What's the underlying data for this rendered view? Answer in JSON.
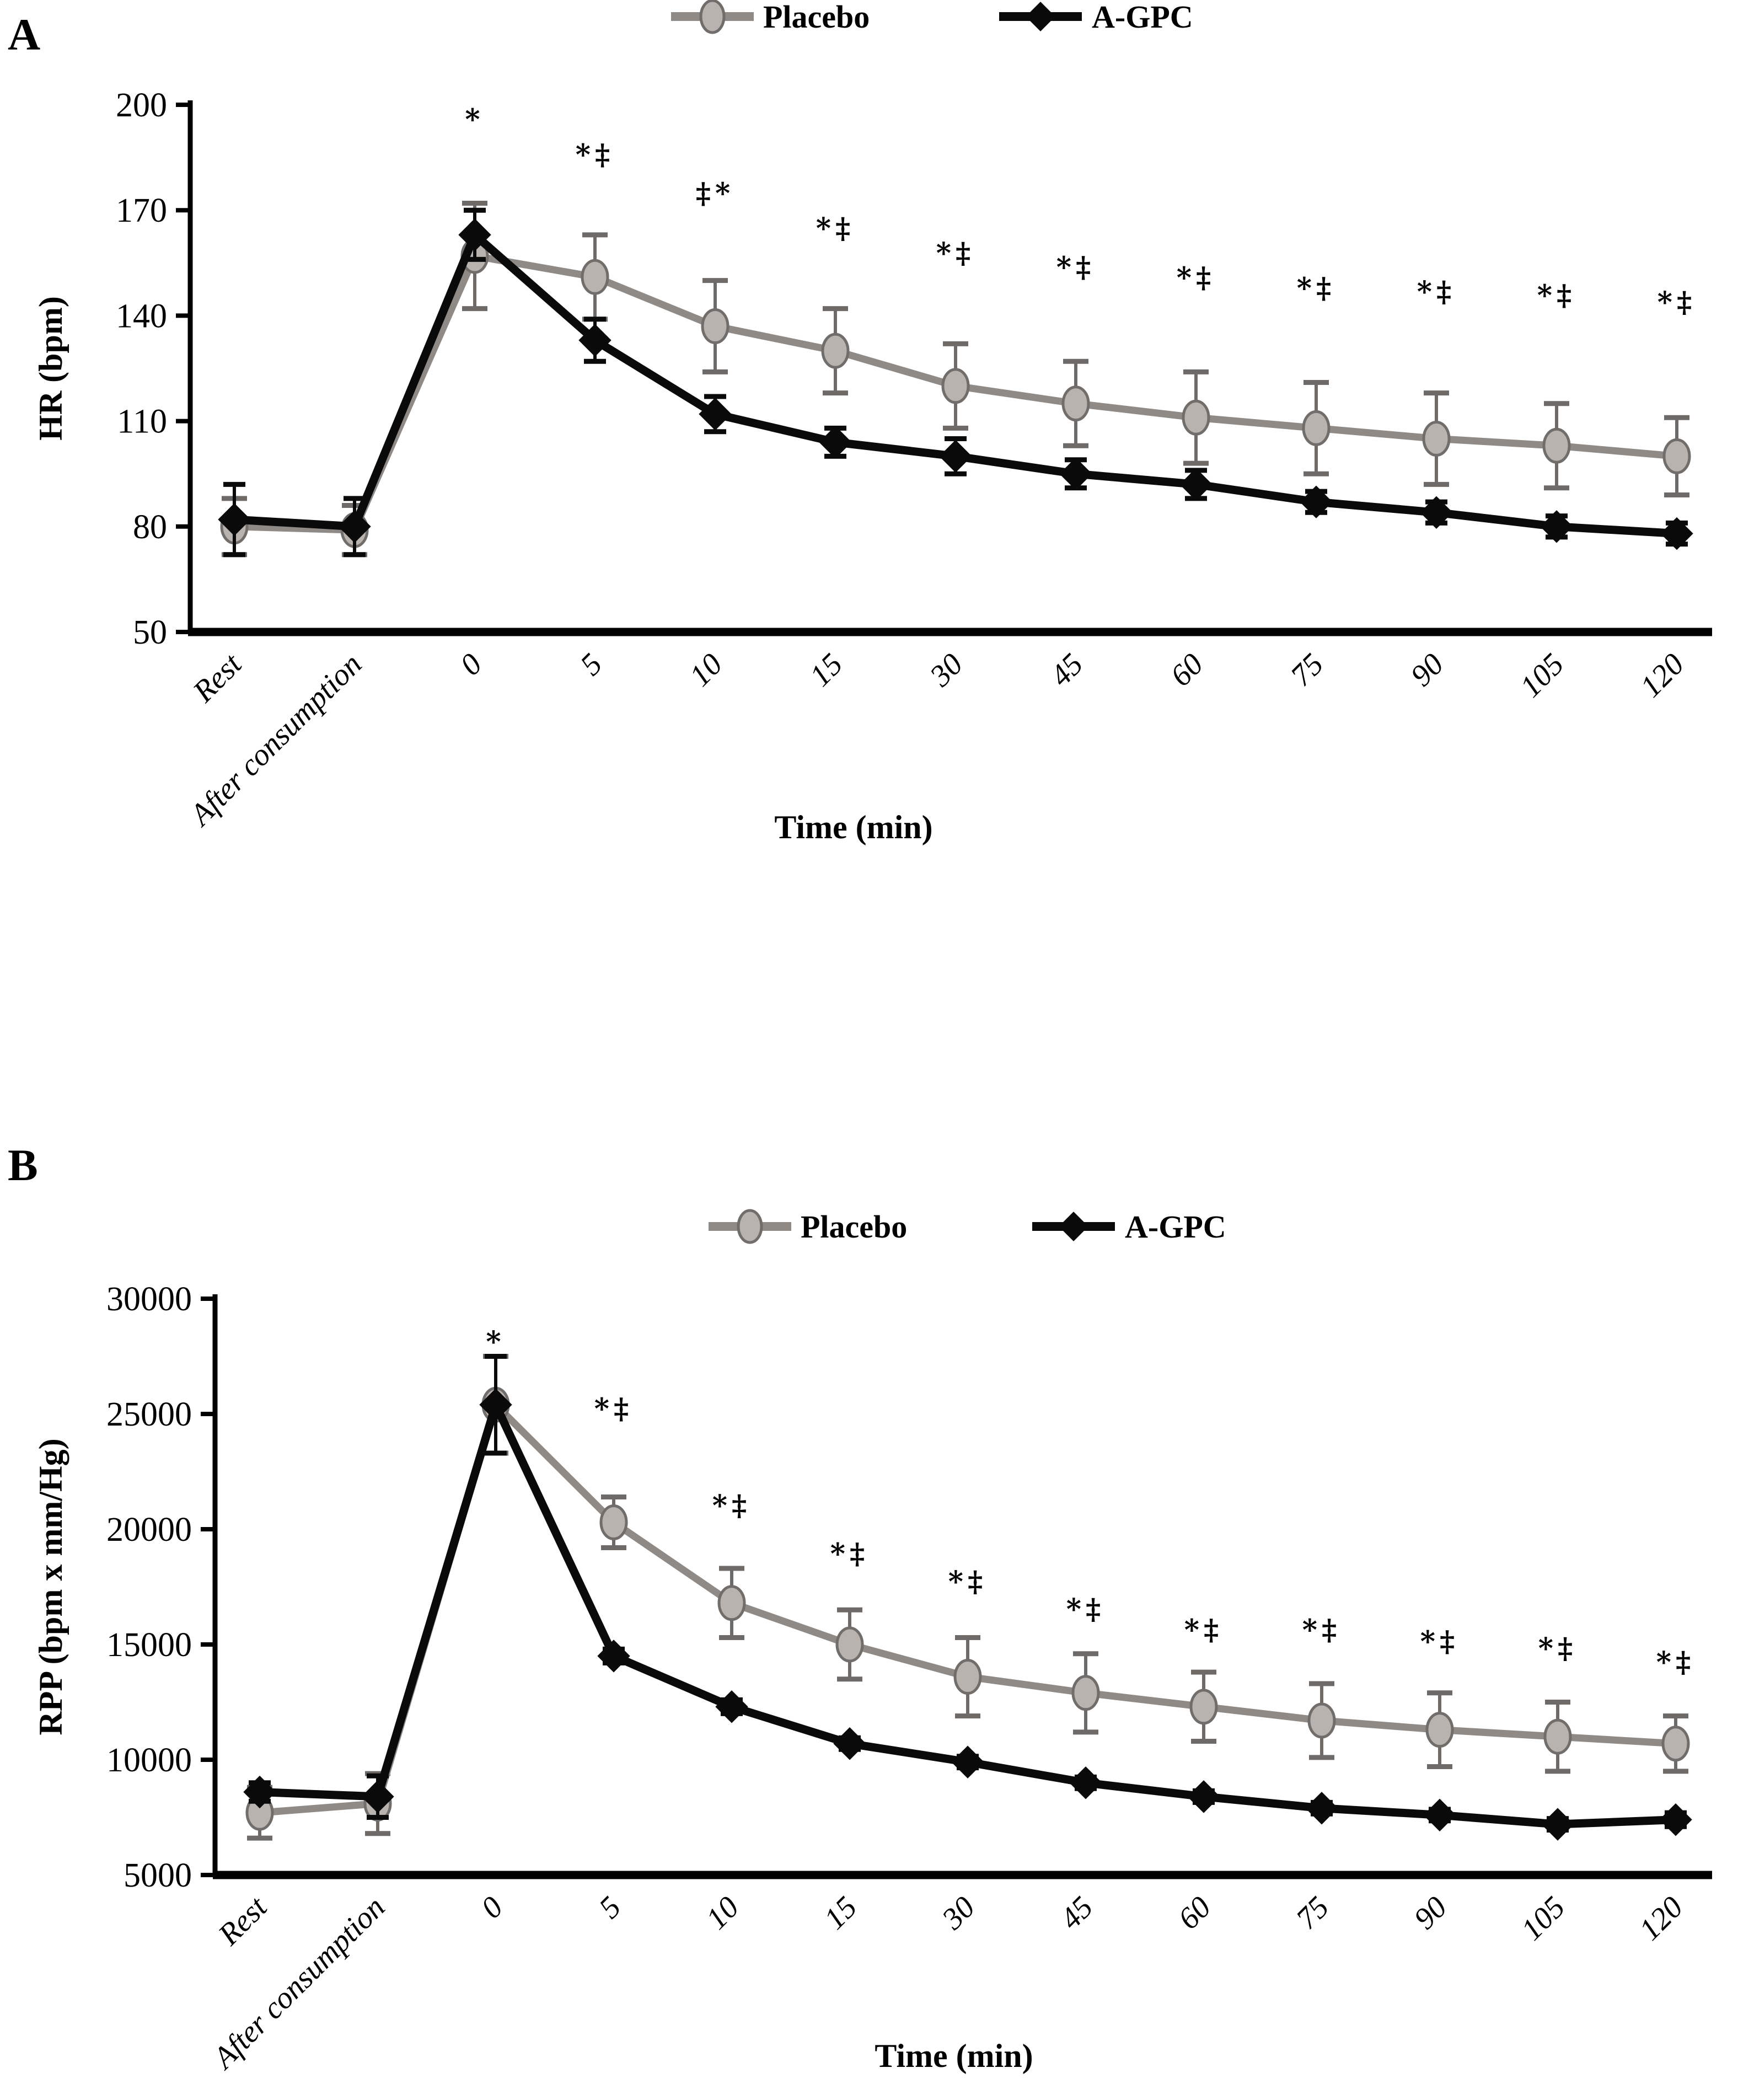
{
  "figure": {
    "panel_a_letter": "A",
    "panel_b_letter": "B"
  },
  "legend": {
    "placebo_label": "Placebo",
    "agpc_label": "A-GPC"
  },
  "colors": {
    "placebo_line": "#8f8a86",
    "placebo_marker_fill": "#b8b3af",
    "placebo_marker_stroke": "#716d6a",
    "placebo_error": "#6e6a67",
    "agpc_line": "#0a0a0a",
    "text": "#000000",
    "axis": "#000000"
  },
  "chart_data": [
    {
      "type": "line",
      "panel": "A",
      "ylabel": "HR (bpm)",
      "xlabel": "Time (min)",
      "ylim": [
        50,
        200
      ],
      "yticks": [
        50,
        80,
        110,
        140,
        170,
        200
      ],
      "grid": false,
      "legend_position": "top-center",
      "categories": [
        "Rest",
        "After consumption",
        "0",
        "5",
        "10",
        "15",
        "30",
        "45",
        "60",
        "75",
        "90",
        "105",
        "120"
      ],
      "series": [
        {
          "name": "Placebo",
          "values": [
            80,
            79,
            157,
            151,
            137,
            130,
            120,
            115,
            111,
            108,
            105,
            103,
            100
          ],
          "err": [
            8,
            7,
            15,
            12,
            13,
            12,
            12,
            12,
            13,
            13,
            13,
            12,
            11
          ]
        },
        {
          "name": "A-GPC",
          "values": [
            82,
            80,
            163,
            133,
            112,
            104,
            100,
            95,
            92,
            87,
            84,
            80,
            78
          ],
          "err": [
            10,
            8,
            7,
            6,
            5,
            4,
            5,
            4,
            4,
            3,
            3,
            3,
            3
          ]
        }
      ],
      "sig_labels": [
        "",
        "",
        "*",
        "*‡",
        "‡*",
        "*‡",
        "*‡",
        "*‡",
        "*‡",
        "*‡",
        "*‡",
        "*‡",
        "*‡"
      ],
      "sig_y": [
        null,
        null,
        193,
        183,
        172,
        162,
        155,
        151,
        148,
        145,
        144,
        143,
        141
      ]
    },
    {
      "type": "line",
      "panel": "B",
      "ylabel": "RPP (bpm x mm/Hg)",
      "xlabel": "Time (min)",
      "ylim": [
        5000,
        30000
      ],
      "yticks": [
        5000,
        10000,
        15000,
        20000,
        25000,
        30000
      ],
      "grid": false,
      "legend_position": "top-center",
      "categories": [
        "Rest",
        "After consumption",
        "0",
        "5",
        "10",
        "15",
        "30",
        "45",
        "60",
        "75",
        "90",
        "105",
        "120"
      ],
      "series": [
        {
          "name": "Placebo",
          "values": [
            7700,
            8100,
            25400,
            20300,
            16800,
            15000,
            13600,
            12900,
            12300,
            11700,
            11300,
            11000,
            10700
          ],
          "err": [
            1100,
            1300,
            2100,
            1100,
            1500,
            1500,
            1700,
            1700,
            1500,
            1600,
            1600,
            1500,
            1200
          ]
        },
        {
          "name": "A-GPC",
          "values": [
            8600,
            8400,
            25400,
            14500,
            12300,
            10700,
            9900,
            9000,
            8400,
            7900,
            7600,
            7200,
            7400
          ],
          "err": [
            400,
            900,
            2100,
            300,
            300,
            250,
            250,
            250,
            250,
            250,
            250,
            250,
            300
          ]
        }
      ],
      "sig_labels": [
        "",
        "",
        "*",
        "*‡",
        "*‡",
        "*‡",
        "*‡",
        "*‡",
        "*‡",
        "*‡",
        "*‡",
        "*‡",
        "*‡"
      ],
      "sig_y": [
        null,
        null,
        27700,
        24800,
        20600,
        18500,
        17300,
        16100,
        15200,
        15200,
        14700,
        14400,
        13800
      ]
    }
  ]
}
